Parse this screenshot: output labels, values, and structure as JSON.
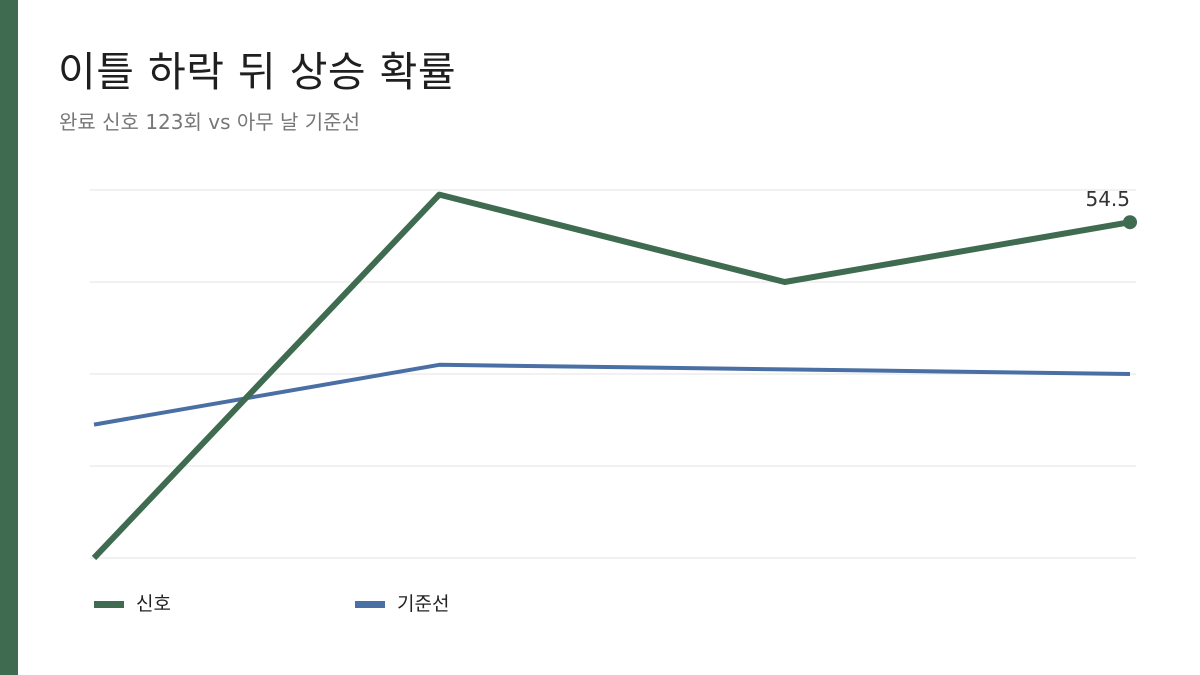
{
  "header": {
    "title": "이틀 하락 뒤 상승 확률",
    "subtitle": "완료 신호 123회 vs 아무 날 기준선"
  },
  "colors": {
    "accent": "#3f6b50",
    "signal": "#3f6b50",
    "baseline": "#4a6fa5",
    "grid": "#e3e3e3"
  },
  "chart_data": {
    "type": "line",
    "title": "이틀 하락 뒤 상승 확률",
    "subtitle": "완료 신호 123회 vs 아무 날 기준선",
    "xlabel": "",
    "ylabel": "",
    "x": [
      0,
      1,
      2,
      3
    ],
    "ylim": [
      47.2,
      55.2
    ],
    "grid": true,
    "series": [
      {
        "name": "신호",
        "values": [
          47.2,
          55.1,
          53.2,
          54.5
        ],
        "color": "#3f6b50",
        "end_label": "54.5"
      },
      {
        "name": "기준선",
        "values": [
          50.1,
          51.4,
          51.3,
          51.2
        ],
        "color": "#4a6fa5"
      }
    ],
    "legend": {
      "position": "bottom-left",
      "entries": [
        "신호",
        "기준선"
      ]
    }
  }
}
